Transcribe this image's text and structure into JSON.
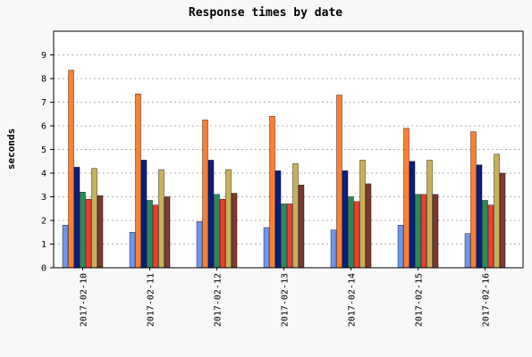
{
  "chart_data": {
    "type": "bar",
    "title": "Response times by date",
    "xlabel": "",
    "ylabel": "seconds",
    "ylim": [
      0,
      10
    ],
    "yticks": [
      "0",
      "1",
      "2",
      "3",
      "4",
      "5",
      "6",
      "7",
      "8",
      "9"
    ],
    "grid": true,
    "legend": "none",
    "categories": [
      "2017-02-10",
      "2017-02-11",
      "2017-02-12",
      "2017-02-13",
      "2017-02-14",
      "2017-02-15",
      "2017-02-16"
    ],
    "series": [
      {
        "color": "#6f96f0",
        "values": [
          1.8,
          1.5,
          1.95,
          1.7,
          1.6,
          1.8,
          1.45
        ]
      },
      {
        "color": "#ff7f32",
        "values": [
          8.35,
          7.35,
          6.25,
          6.4,
          7.3,
          5.9,
          5.75
        ]
      },
      {
        "color": "#0a1f7d",
        "values": [
          4.25,
          4.55,
          4.55,
          4.1,
          4.1,
          4.5,
          4.35
        ]
      },
      {
        "color": "#2a8a5a",
        "values": [
          3.2,
          2.85,
          3.1,
          2.7,
          3.0,
          3.1,
          2.85
        ]
      },
      {
        "color": "#e84030",
        "values": [
          2.9,
          2.65,
          2.9,
          2.7,
          2.8,
          3.1,
          2.65
        ]
      },
      {
        "color": "#c8b05a",
        "values": [
          4.2,
          4.15,
          4.15,
          4.4,
          4.55,
          4.55,
          4.8
        ]
      },
      {
        "color": "#7c3a30",
        "values": [
          3.05,
          3.0,
          3.15,
          3.5,
          3.55,
          3.1,
          4.0
        ]
      }
    ]
  }
}
